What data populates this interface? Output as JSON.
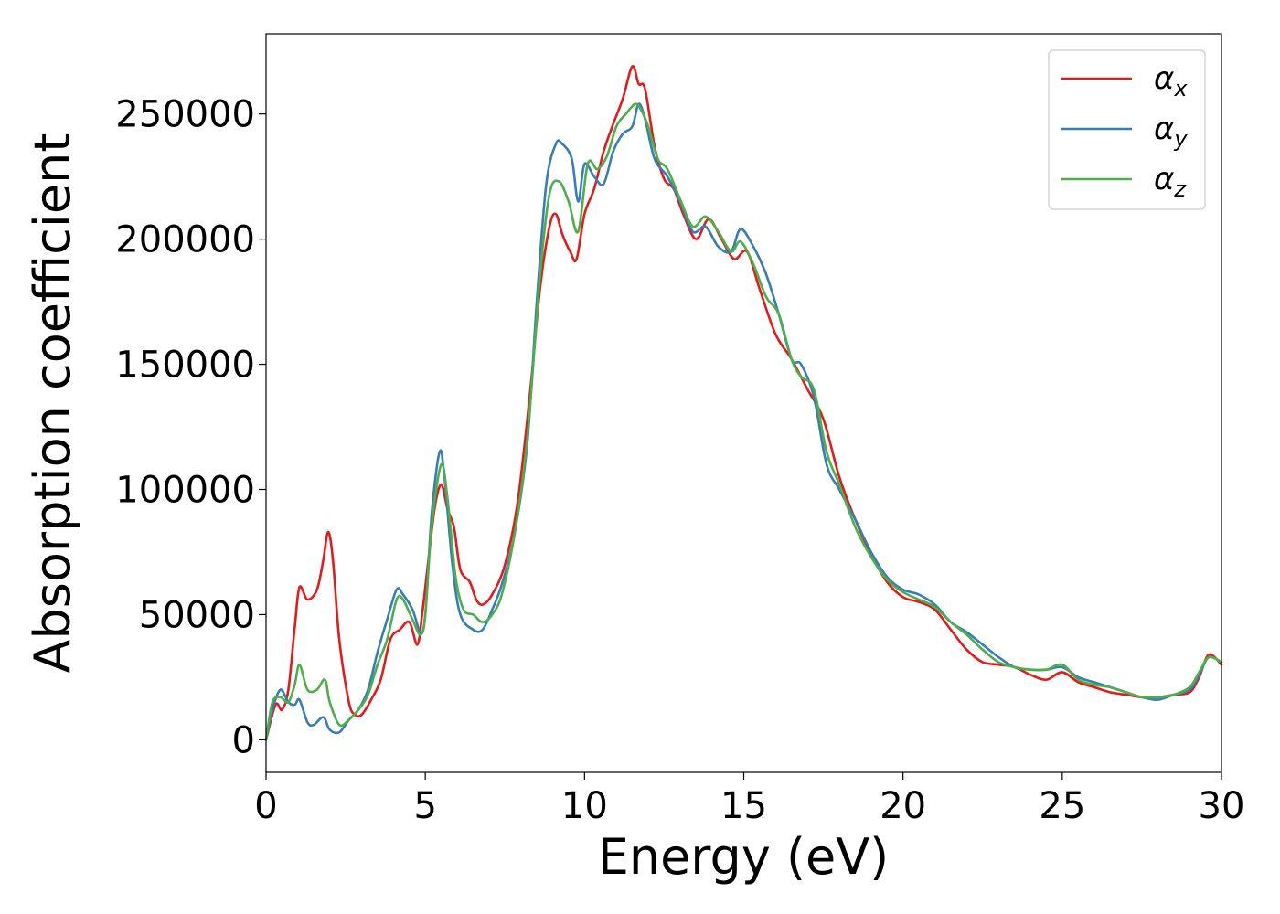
{
  "colors": {
    "alpha_x": "#e41a1c",
    "alpha_y": "#377eb8",
    "alpha_z": "#4daf4a"
  },
  "chart_data": {
    "type": "line",
    "title": "",
    "xlabel": "Energy (eV)",
    "ylabel": "Absorption coefficient",
    "xlim": [
      0,
      30
    ],
    "ylim": [
      -13000,
      282000
    ],
    "xticks": [
      0,
      5,
      10,
      15,
      20,
      25,
      30
    ],
    "yticks": [
      0,
      50000,
      100000,
      150000,
      200000,
      250000
    ],
    "xtick_labels": [
      "0",
      "5",
      "10",
      "15",
      "20",
      "25",
      "30"
    ],
    "ytick_labels": [
      "0",
      "50000",
      "100000",
      "150000",
      "200000",
      "250000"
    ],
    "grid": false,
    "legend_position": "top-right",
    "series": [
      {
        "name": "αx",
        "symbol": "α",
        "subscript": "x",
        "color": "#e41a1c",
        "x": [
          0,
          0.3,
          0.5,
          0.7,
          0.9,
          1.05,
          1.3,
          1.6,
          1.8,
          1.95,
          2.1,
          2.3,
          2.6,
          2.8,
          3.0,
          3.3,
          3.6,
          3.9,
          4.2,
          4.5,
          4.75,
          4.9,
          5.1,
          5.3,
          5.5,
          5.7,
          5.9,
          6.1,
          6.4,
          6.6,
          6.8,
          7.1,
          7.5,
          7.9,
          8.3,
          8.6,
          8.9,
          9.1,
          9.3,
          9.55,
          9.75,
          10.0,
          10.3,
          10.6,
          10.9,
          11.2,
          11.5,
          11.7,
          11.9,
          12.2,
          12.5,
          12.8,
          13.1,
          13.5,
          13.9,
          14.3,
          14.7,
          15.1,
          15.5,
          16.0,
          16.5,
          17.0,
          17.5,
          18.0,
          18.5,
          19.0,
          19.5,
          20.0,
          20.5,
          21.0,
          21.5,
          22.0,
          22.5,
          23.0,
          23.5,
          24.0,
          24.5,
          25.0,
          25.5,
          26.0,
          26.5,
          27.0,
          27.5,
          28.0,
          28.5,
          29.0,
          29.3,
          29.6,
          30.0
        ],
        "y": [
          0,
          14000,
          12000,
          20000,
          45000,
          61000,
          56000,
          60000,
          72000,
          83000,
          72000,
          40000,
          15000,
          10000,
          10000,
          16000,
          24000,
          40000,
          44000,
          47000,
          38000,
          50000,
          72000,
          93000,
          102000,
          92000,
          85000,
          68000,
          63000,
          56000,
          54000,
          58000,
          70000,
          95000,
          140000,
          180000,
          205000,
          210000,
          202000,
          195000,
          192000,
          210000,
          220000,
          235000,
          246000,
          256000,
          269000,
          262000,
          260000,
          237000,
          224000,
          220000,
          210000,
          200000,
          208000,
          200000,
          192000,
          195000,
          180000,
          162000,
          152000,
          140000,
          128000,
          105000,
          88000,
          74000,
          63000,
          57000,
          55000,
          52000,
          44000,
          36000,
          31000,
          30000,
          29000,
          26000,
          24000,
          27000,
          23000,
          21000,
          19000,
          18000,
          17000,
          17000,
          18000,
          19000,
          25000,
          34000,
          30000
        ]
      },
      {
        "name": "αy",
        "symbol": "α",
        "subscript": "y",
        "color": "#377eb8",
        "x": [
          0,
          0.2,
          0.45,
          0.7,
          0.9,
          1.05,
          1.3,
          1.5,
          1.8,
          2.0,
          2.3,
          2.6,
          2.9,
          3.2,
          3.5,
          3.8,
          4.1,
          4.3,
          4.6,
          4.85,
          5.0,
          5.2,
          5.45,
          5.6,
          5.85,
          6.1,
          6.5,
          6.8,
          7.1,
          7.4,
          7.8,
          8.2,
          8.5,
          8.8,
          9.1,
          9.3,
          9.6,
          9.8,
          10.0,
          10.3,
          10.6,
          10.9,
          11.2,
          11.5,
          11.7,
          11.9,
          12.2,
          12.6,
          13.0,
          13.4,
          13.8,
          14.2,
          14.6,
          14.9,
          15.3,
          15.7,
          16.1,
          16.5,
          16.8,
          17.2,
          17.6,
          18.0,
          18.5,
          19.0,
          19.5,
          20.0,
          20.5,
          21.0,
          21.5,
          22.0,
          22.5,
          23.0,
          23.5,
          24.0,
          24.5,
          25.0,
          25.5,
          26.0,
          26.5,
          27.0,
          27.5,
          28.0,
          28.5,
          29.0,
          29.3,
          29.6,
          30.0
        ],
        "y": [
          0,
          12000,
          20000,
          15000,
          14000,
          16000,
          7000,
          6000,
          9000,
          4000,
          3000,
          8000,
          12000,
          20000,
          35000,
          48000,
          60000,
          58000,
          52000,
          43000,
          50000,
          90000,
          115000,
          105000,
          70000,
          50000,
          44000,
          44000,
          52000,
          62000,
          82000,
          118000,
          175000,
          222000,
          238000,
          238000,
          232000,
          215000,
          230000,
          225000,
          222000,
          235000,
          242000,
          245000,
          254000,
          248000,
          232000,
          225000,
          215000,
          203000,
          205000,
          197000,
          195000,
          204000,
          197000,
          186000,
          170000,
          152000,
          150000,
          137000,
          110000,
          100000,
          88000,
          75000,
          65000,
          60000,
          58000,
          54000,
          47000,
          43000,
          38000,
          33000,
          29000,
          28000,
          28000,
          29000,
          25000,
          23000,
          21000,
          19000,
          17000,
          16000,
          18000,
          20000,
          26000,
          33000,
          31000
        ]
      },
      {
        "name": "αz",
        "symbol": "α",
        "subscript": "z",
        "color": "#4daf4a",
        "x": [
          0,
          0.2,
          0.45,
          0.7,
          0.9,
          1.05,
          1.3,
          1.6,
          1.85,
          2.0,
          2.3,
          2.6,
          2.9,
          3.2,
          3.5,
          3.8,
          4.1,
          4.3,
          4.6,
          4.85,
          5.0,
          5.2,
          5.5,
          5.7,
          5.95,
          6.2,
          6.5,
          6.8,
          7.1,
          7.4,
          7.8,
          8.2,
          8.6,
          8.9,
          9.2,
          9.5,
          9.8,
          10.1,
          10.4,
          10.7,
          11.0,
          11.3,
          11.6,
          11.8,
          12.0,
          12.3,
          12.6,
          13.0,
          13.4,
          13.8,
          14.2,
          14.6,
          14.9,
          15.3,
          15.7,
          16.1,
          16.5,
          16.8,
          17.2,
          17.6,
          18.0,
          18.5,
          19.0,
          19.5,
          20.0,
          20.5,
          21.0,
          21.5,
          22.0,
          22.5,
          23.0,
          23.5,
          24.0,
          24.5,
          25.0,
          25.5,
          26.0,
          26.5,
          27.0,
          27.5,
          28.0,
          28.5,
          29.0,
          29.3,
          29.6,
          30.0
        ],
        "y": [
          0,
          15000,
          17000,
          15000,
          22000,
          30000,
          20000,
          20000,
          24000,
          15000,
          6000,
          8000,
          12000,
          18000,
          30000,
          40000,
          56000,
          56000,
          48000,
          42000,
          50000,
          85000,
          110000,
          96000,
          65000,
          52000,
          50000,
          47000,
          50000,
          58000,
          82000,
          120000,
          185000,
          218000,
          223000,
          215000,
          203000,
          230000,
          228000,
          233000,
          245000,
          250000,
          254000,
          251000,
          245000,
          232000,
          228000,
          216000,
          205000,
          209000,
          203000,
          195000,
          199000,
          190000,
          177000,
          170000,
          152000,
          145000,
          140000,
          115000,
          102000,
          85000,
          73000,
          64000,
          59000,
          56000,
          53000,
          47000,
          42000,
          36000,
          31000,
          29000,
          28000,
          28000,
          30000,
          24000,
          22000,
          21000,
          19000,
          17000,
          17000,
          18000,
          21000,
          27000,
          33000,
          31000
        ]
      }
    ]
  }
}
